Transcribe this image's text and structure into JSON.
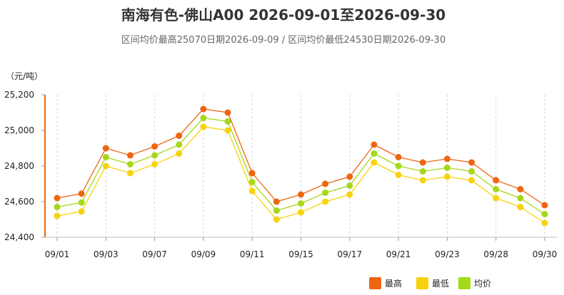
{
  "chart_data": {
    "type": "line",
    "title": "南海有色-佛山A00 2026-09-01至2026-09-30",
    "subtitle": "区间均价最高25070日期2026-09-09 / 区间均价最低24530日期2026-09-30",
    "ylabel": "（元/吨）",
    "ylim": [
      24400,
      25200
    ],
    "yticks": [
      "24,400",
      "24,600",
      "24,800",
      "25,000",
      "25,200"
    ],
    "ytick_values": [
      24400,
      24600,
      24800,
      25000,
      25200
    ],
    "xtick_labels": [
      "09/01",
      "09/03",
      "09/07",
      "09/09",
      "09/11",
      "09/15",
      "09/17",
      "09/21",
      "09/23",
      "09/28",
      "09/30"
    ],
    "xtick_indices": [
      0,
      2,
      4,
      6,
      8,
      10,
      12,
      14,
      16,
      18,
      20
    ],
    "categories": [
      "09/01",
      "09/02",
      "09/03",
      "09/04",
      "09/07",
      "09/08",
      "09/09",
      "09/10",
      "09/11",
      "09/14",
      "09/15",
      "09/16",
      "09/17",
      "09/18",
      "09/21",
      "09/22",
      "09/23",
      "09/24",
      "09/28",
      "09/29",
      "09/30"
    ],
    "series": [
      {
        "name": "最高",
        "color": "#ee6611",
        "values": [
          24620,
          24645,
          24900,
          24860,
          24910,
          24970,
          25120,
          25100,
          24760,
          24600,
          24640,
          24700,
          24740,
          24920,
          24850,
          24820,
          24840,
          24820,
          24720,
          24670,
          24580
        ]
      },
      {
        "name": "最低",
        "color": "#f7d30d",
        "values": [
          24520,
          24545,
          24800,
          24760,
          24810,
          24870,
          25020,
          25000,
          24660,
          24500,
          24540,
          24600,
          24640,
          24820,
          24750,
          24720,
          24740,
          24720,
          24620,
          24570,
          24480
        ]
      },
      {
        "name": "均价",
        "color": "#a5d819",
        "values": [
          24570,
          24595,
          24850,
          24810,
          24860,
          24920,
          25070,
          25050,
          24710,
          24550,
          24590,
          24650,
          24690,
          24870,
          24800,
          24770,
          24790,
          24770,
          24670,
          24620,
          24530
        ]
      }
    ],
    "legend": "bottom-right",
    "grid": "vertical-dashed"
  }
}
